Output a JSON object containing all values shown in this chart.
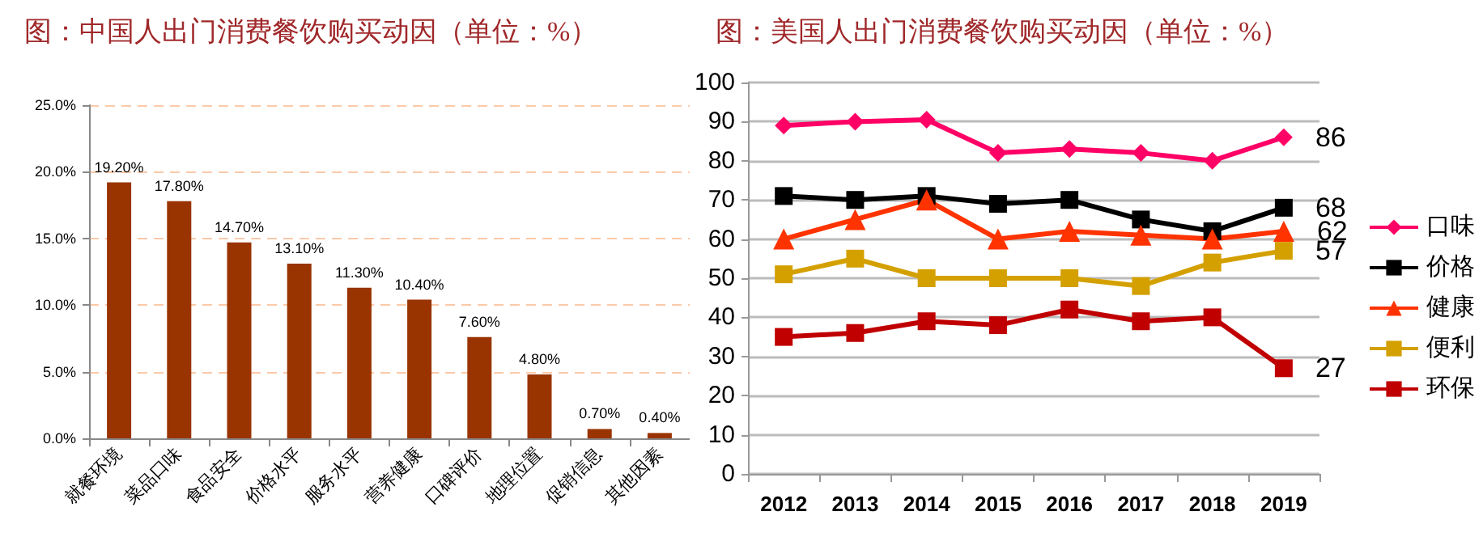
{
  "chart_data": [
    {
      "type": "bar",
      "title": "图：中国人出门消费餐饮购买动因（单位：%）",
      "categories": [
        "就餐环境",
        "菜品口味",
        "食品安全",
        "价格水平",
        "服务水平",
        "营养健康",
        "口碑评价",
        "地理位置",
        "促销信息",
        "其他因素"
      ],
      "values": [
        19.2,
        17.8,
        14.7,
        13.1,
        11.3,
        10.4,
        7.6,
        4.8,
        0.7,
        0.4
      ],
      "value_labels": [
        "19.20%",
        "17.80%",
        "14.70%",
        "13.10%",
        "11.30%",
        "10.40%",
        "7.60%",
        "4.80%",
        "0.70%",
        "0.40%"
      ],
      "color": "#993300",
      "ylim": [
        0,
        25
      ],
      "yticks": [
        {
          "value": 0,
          "label": "0.0%"
        },
        {
          "value": 5,
          "label": "5.0%"
        },
        {
          "value": 10,
          "label": "10.0%"
        },
        {
          "value": 15,
          "label": "15.0%"
        },
        {
          "value": 20,
          "label": "20.0%"
        },
        {
          "value": 25,
          "label": "25.0%"
        }
      ],
      "grid": "y"
    },
    {
      "type": "line",
      "title": "图：美国人出门消费餐饮购买动因（单位：%）",
      "categories": [
        "2012",
        "2013",
        "2014",
        "2015",
        "2016",
        "2017",
        "2018",
        "2019"
      ],
      "series": [
        {
          "name": "口味",
          "color": "#ff0066",
          "marker": "diamond",
          "values": [
            89,
            90,
            90.5,
            82,
            83,
            82,
            80,
            86
          ],
          "value_labels": [
            null,
            null,
            null,
            null,
            null,
            null,
            null,
            "86"
          ]
        },
        {
          "name": "价格",
          "color": "#000000",
          "marker": "square",
          "values": [
            71,
            70,
            71,
            69,
            70,
            65,
            62,
            68
          ],
          "value_labels": [
            null,
            null,
            null,
            null,
            null,
            null,
            null,
            "68"
          ]
        },
        {
          "name": "健康",
          "color": "#ff3300",
          "marker": "triangle",
          "values": [
            60,
            65,
            70,
            60,
            62,
            61,
            60,
            62
          ],
          "value_labels": [
            null,
            null,
            null,
            null,
            null,
            null,
            null,
            "62"
          ]
        },
        {
          "name": "便利",
          "color": "#d4a000",
          "marker": "square",
          "values": [
            51,
            55,
            50,
            50,
            50,
            48,
            54,
            57
          ],
          "value_labels": [
            null,
            null,
            null,
            null,
            null,
            null,
            null,
            "57"
          ]
        },
        {
          "name": "环保",
          "color": "#c00000",
          "marker": "square",
          "values": [
            35,
            36,
            39,
            38,
            42,
            39,
            40,
            27
          ],
          "value_labels": [
            null,
            null,
            null,
            null,
            null,
            null,
            null,
            "27"
          ]
        }
      ],
      "ylim": [
        0,
        100
      ],
      "yticks": [
        0,
        10,
        20,
        30,
        40,
        50,
        60,
        70,
        80,
        90,
        100
      ],
      "grid": "y",
      "legend": "right",
      "line_style": "solid"
    }
  ]
}
